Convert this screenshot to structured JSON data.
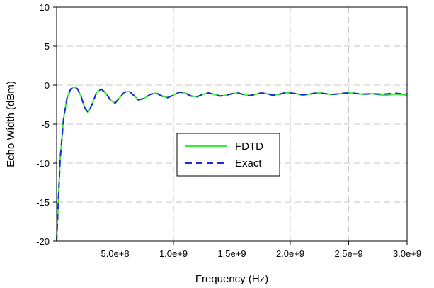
{
  "chart_data": {
    "type": "line",
    "xlabel": "Frequency (Hz)",
    "ylabel": "Echo Width (dBm)",
    "xlim": [
      0,
      3000000000
    ],
    "ylim": [
      -20,
      10
    ],
    "x_ticks": [
      500000000,
      1000000000,
      1500000000,
      2000000000,
      2500000000,
      3000000000
    ],
    "x_tick_labels": [
      "5.0e+8",
      "1.0e+9",
      "1.5e+9",
      "2.0e+9",
      "2.5e+9",
      "3.0e+9"
    ],
    "y_ticks": [
      -20,
      -15,
      -10,
      -5,
      0,
      5,
      10
    ],
    "y_tick_labels": [
      "-20",
      "-15",
      "-10",
      "-5",
      "0",
      "5",
      "10"
    ],
    "grid": true,
    "legend_position": "center",
    "series": [
      {
        "name": "FDTD",
        "color": "#33ee33",
        "style": "solid",
        "x": [
          0,
          30000000,
          60000000,
          90000000,
          120000000,
          150000000,
          180000000,
          210000000,
          240000000,
          270000000,
          300000000,
          340000000,
          380000000,
          420000000,
          460000000,
          500000000,
          540000000,
          580000000,
          620000000,
          660000000,
          700000000,
          750000000,
          800000000,
          850000000,
          900000000,
          950000000,
          1000000000,
          1050000000,
          1100000000,
          1150000000,
          1200000000,
          1250000000,
          1300000000,
          1350000000,
          1400000000,
          1450000000,
          1500000000,
          1550000000,
          1600000000,
          1650000000,
          1700000000,
          1750000000,
          1800000000,
          1850000000,
          1900000000,
          1950000000,
          2000000000,
          2050000000,
          2100000000,
          2150000000,
          2200000000,
          2250000000,
          2300000000,
          2350000000,
          2400000000,
          2450000000,
          2500000000,
          2550000000,
          2600000000,
          2650000000,
          2700000000,
          2750000000,
          2800000000,
          2850000000,
          2900000000,
          2950000000,
          3000000000
        ],
        "values": [
          -20,
          -9.5,
          -4.2,
          -1.6,
          -0.5,
          -0.2,
          -0.5,
          -1.5,
          -2.9,
          -3.5,
          -2.6,
          -1.0,
          -0.5,
          -1.0,
          -1.9,
          -2.3,
          -1.6,
          -0.9,
          -0.8,
          -1.3,
          -1.9,
          -1.7,
          -1.2,
          -1.0,
          -1.4,
          -1.6,
          -1.3,
          -0.9,
          -1.0,
          -1.4,
          -1.5,
          -1.2,
          -1.0,
          -1.2,
          -1.4,
          -1.3,
          -1.1,
          -1.0,
          -1.2,
          -1.35,
          -1.2,
          -1.0,
          -1.1,
          -1.3,
          -1.2,
          -1.0,
          -1.0,
          -1.1,
          -1.25,
          -1.2,
          -1.05,
          -1.0,
          -1.1,
          -1.2,
          -1.15,
          -1.05,
          -1.0,
          -1.05,
          -1.15,
          -1.15,
          -1.1,
          -1.2,
          -1.3,
          -1.25,
          -1.15,
          -1.2,
          -1.3
        ]
      },
      {
        "name": "Exact",
        "color": "#1a2ad8",
        "style": "dashed",
        "x": [
          0,
          30000000,
          60000000,
          90000000,
          120000000,
          150000000,
          180000000,
          210000000,
          240000000,
          270000000,
          300000000,
          340000000,
          380000000,
          420000000,
          460000000,
          500000000,
          540000000,
          580000000,
          620000000,
          660000000,
          700000000,
          750000000,
          800000000,
          850000000,
          900000000,
          950000000,
          1000000000,
          1050000000,
          1100000000,
          1150000000,
          1200000000,
          1250000000,
          1300000000,
          1350000000,
          1400000000,
          1450000000,
          1500000000,
          1550000000,
          1600000000,
          1650000000,
          1700000000,
          1750000000,
          1800000000,
          1850000000,
          1900000000,
          1950000000,
          2000000000,
          2050000000,
          2100000000,
          2150000000,
          2200000000,
          2250000000,
          2300000000,
          2350000000,
          2400000000,
          2450000000,
          2500000000,
          2550000000,
          2600000000,
          2650000000,
          2700000000,
          2750000000,
          2800000000,
          2850000000,
          2900000000,
          2950000000,
          3000000000
        ],
        "values": [
          -20,
          -9.5,
          -4.2,
          -1.6,
          -0.5,
          -0.2,
          -0.5,
          -1.5,
          -2.9,
          -3.5,
          -2.6,
          -1.0,
          -0.5,
          -1.0,
          -1.9,
          -2.3,
          -1.6,
          -0.9,
          -0.8,
          -1.3,
          -1.9,
          -1.7,
          -1.2,
          -1.0,
          -1.4,
          -1.6,
          -1.3,
          -0.9,
          -1.0,
          -1.4,
          -1.5,
          -1.2,
          -1.0,
          -1.2,
          -1.4,
          -1.3,
          -1.1,
          -1.0,
          -1.2,
          -1.35,
          -1.2,
          -1.0,
          -1.1,
          -1.3,
          -1.2,
          -1.0,
          -1.0,
          -1.1,
          -1.25,
          -1.2,
          -1.05,
          -1.0,
          -1.1,
          -1.2,
          -1.15,
          -1.05,
          -1.0,
          -1.05,
          -1.15,
          -1.15,
          -1.1,
          -1.15,
          -1.15,
          -1.1,
          -1.05,
          -1.1,
          -1.1
        ]
      }
    ]
  }
}
